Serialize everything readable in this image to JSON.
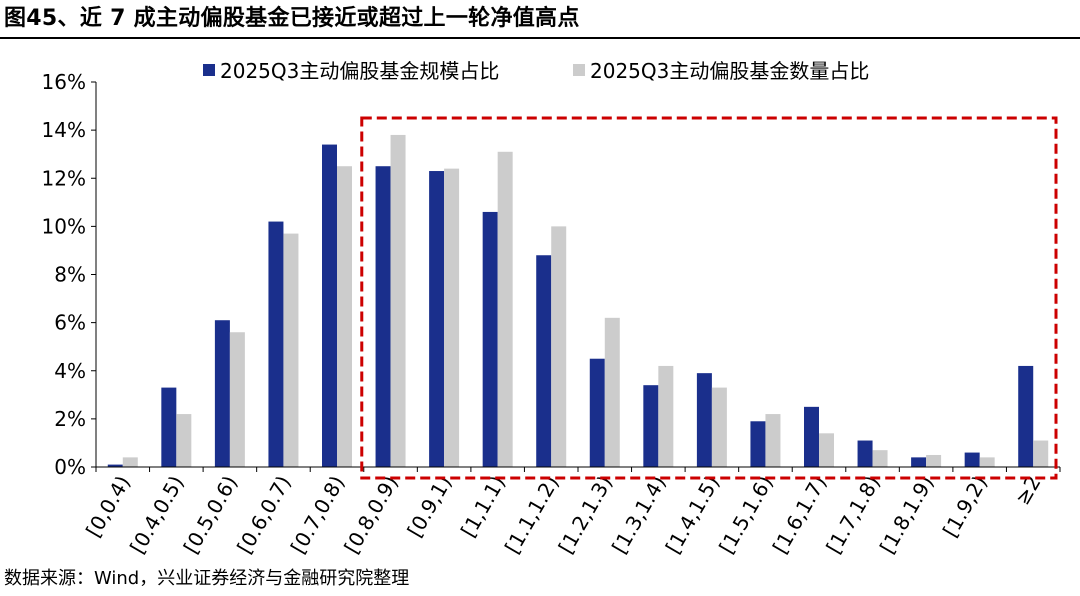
{
  "figure": {
    "title": "图45、近 7 成主动偏股基金已接近或超过上一轮净值高点",
    "source": "数据来源：Wind，兴业证券经济与金融研究院整理"
  },
  "colors": {
    "series1": "#1a2f8c",
    "series2": "#cccccc",
    "highlight": "#cc0000"
  },
  "chart_data": {
    "type": "bar",
    "categories": [
      "[0,0.4)",
      "[0.4,0.5)",
      "[0.5,0.6)",
      "[0.6,0.7)",
      "[0.7,0.8)",
      "[0.8,0.9)",
      "[0.9,1)",
      "[1,1.1)",
      "[1.1,1.2)",
      "[1.2,1.3)",
      "[1.3,1.4)",
      "[1.4,1.5)",
      "[1.5,1.6)",
      "[1.6,1.7)",
      "[1.7,1.8)",
      "[1.8,1.9)",
      "[1.9,2)",
      "≥2"
    ],
    "series": [
      {
        "name": "2025Q3主动偏股基金规模占比",
        "values": [
          0.1,
          3.3,
          6.1,
          10.2,
          13.4,
          12.5,
          12.3,
          10.6,
          8.8,
          4.5,
          3.4,
          3.9,
          1.9,
          2.5,
          1.1,
          0.4,
          0.6,
          4.2
        ]
      },
      {
        "name": "2025Q3主动偏股基金数量占比",
        "values": [
          0.4,
          2.2,
          5.6,
          9.7,
          12.5,
          13.8,
          12.4,
          13.1,
          10.0,
          6.2,
          4.2,
          3.3,
          2.2,
          1.4,
          0.7,
          0.5,
          0.4,
          1.1
        ]
      }
    ],
    "ylim": [
      0,
      16
    ],
    "yticks": [
      "0%",
      "2%",
      "4%",
      "6%",
      "8%",
      "10%",
      "12%",
      "14%",
      "16%"
    ],
    "grid": false,
    "legend_position": "top-center",
    "annotation": {
      "type": "dashed-box",
      "start_category": "[0.8,0.9)",
      "end_category": "≥2"
    }
  }
}
